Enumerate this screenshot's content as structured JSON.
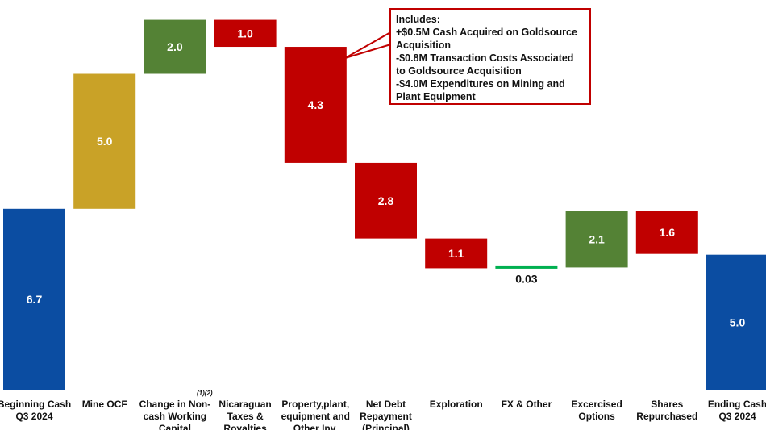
{
  "chart_data": {
    "type": "waterfall",
    "title": "",
    "categories": [
      "Beginning Cash Q3 2024",
      "Mine OCF",
      "Change in Non-cash Working Capital",
      "Nicaraguan Taxes & Royalties",
      "Property,plant, equipment and Other Inv.",
      "Net Debt Repayment (Principal)",
      "Exploration",
      "FX & Other",
      "Excercised Options",
      "Shares Repurchased",
      "Ending Cash Q3 2024"
    ],
    "category_lines": [
      [
        "Beginning Cash",
        "Q3 2024"
      ],
      [
        "Mine OCF"
      ],
      [
        "Change in Non-",
        "cash Working",
        "Capital"
      ],
      [
        "Nicaraguan",
        "Taxes &",
        "Royalties"
      ],
      [
        "Property,plant,",
        "equipment and",
        "Other Inv."
      ],
      [
        "Net Debt",
        "Repayment",
        "(Principal)"
      ],
      [
        "Exploration"
      ],
      [
        "FX & Other"
      ],
      [
        "Excercised",
        "Options"
      ],
      [
        "Shares",
        "Repurchased"
      ],
      [
        "Ending Cash",
        "Q3 2024"
      ]
    ],
    "values": [
      6.7,
      5.0,
      2.0,
      -1.0,
      -4.3,
      -2.8,
      -1.1,
      0.03,
      2.1,
      -1.6,
      5.0
    ],
    "labels": [
      "6.7",
      "5.0",
      "2.0",
      "1.0",
      "4.3",
      "2.8",
      "1.1",
      "0.03",
      "2.1",
      "1.6",
      "5.0"
    ],
    "kinds": [
      "total",
      "delta",
      "delta",
      "delta",
      "delta",
      "delta",
      "delta",
      "delta",
      "delta",
      "delta",
      "total"
    ],
    "colors": {
      "total": "#0b4da2",
      "mine": "#c9a227",
      "positive": "#548235",
      "negative": "#c00000",
      "neutral": "#00b050",
      "label_on_bar": "#ffffff",
      "label_off_bar": "#111111"
    },
    "bar_colors": [
      "total",
      "mine",
      "positive",
      "negative",
      "negative",
      "negative",
      "negative",
      "neutral",
      "positive",
      "negative",
      "total"
    ],
    "footnote_ref": "(1)(2)",
    "ylim": [
      0,
      13.7
    ],
    "annotation": {
      "lines": [
        "Includes:",
        "+$0.5M Cash Acquired on Goldsource Acquisition",
        "-$0.8M Transaction Costs Associated to Goldsource Acquisition",
        "-$4.0M Expenditures on Mining and Plant Equipment"
      ],
      "target_category": "Property,plant, equipment and Other Inv."
    }
  }
}
